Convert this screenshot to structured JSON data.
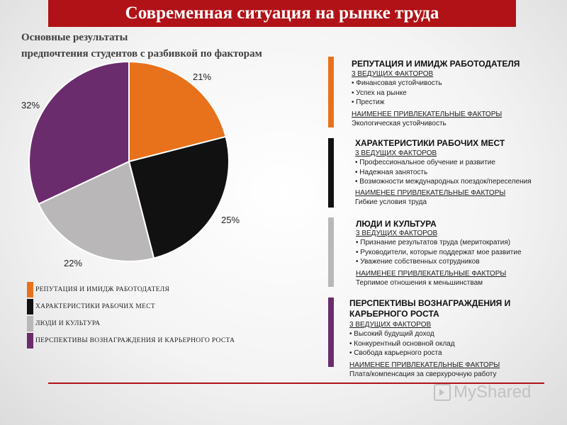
{
  "title": "Современная ситуация на рынке труда",
  "subtitle_line1": "Основные результаты",
  "subtitle_line2": "предпочтения студентов с разбивкой по факторам",
  "colors": {
    "accent": "#b01217",
    "orange": "#e8721c",
    "black": "#111111",
    "gray": "#b9b7b7",
    "purple": "#6b2c6d"
  },
  "chart_data": {
    "type": "pie",
    "categories": [
      "РЕПУТАЦИЯ  И ИМИДЖ РАБОТОДАТЕЛЯ",
      "ХАРАКТЕРИСТИКИ  РАБОЧИХ  МЕСТ",
      "ЛЮДИ И КУЛЬТУРА",
      "ПЕРСПЕКТИВЫ ВОЗНАГРАЖДЕНИЯ И КАРЬЕРНОГО РОСТА"
    ],
    "values": [
      21,
      25,
      22,
      32
    ],
    "labels": [
      "21%",
      "25%",
      "22%",
      "32%"
    ],
    "colors": [
      "#e8721c",
      "#111111",
      "#b9b7b7",
      "#6b2c6d"
    ],
    "legend": "bottom-left"
  },
  "panels": [
    {
      "title": "РЕПУТАЦИЯ И ИМИДЖ РАБОТОДАТЕЛЯ",
      "top_label": "3 ВЕДУЩИХ ФАКТОРОВ",
      "items": [
        "Финансовая устойчивость",
        "Успех на рынке",
        "Престиж"
      ],
      "least_label": "НАИМЕНЕЕ ПРИВЛЕКАТЕЛЬНЫЕ ФАКТОРЫ",
      "least": "Экологическая устойчивость"
    },
    {
      "title": "ХАРАКТЕРИСТИКИ РАБОЧИХ МЕСТ",
      "top_label": "3 ВЕДУЩИХ ФАКТОРОВ",
      "items": [
        "Профессиональное обучение и развитие",
        "Надежная занятость",
        "Возможности международных поездок/переселения"
      ],
      "least_label": "НАИМЕНЕЕ ПРИВЛЕКАТЕЛЬНЫЕ ФАКТОРЫ",
      "least": "Гибкие условия труда"
    },
    {
      "title": "ЛЮДИ И КУЛЬТУРА",
      "top_label": "3 ВЕДУЩИХ ФАКТОРОВ",
      "items": [
        "Признание  результатов труда (меритократия)",
        "Руководители, которые поддержат мое развитие",
        "Уважение собственных сотрудников"
      ],
      "least_label": "НАИМЕНЕЕ ПРИВЛЕКАТЕЛЬНЫЕ ФАКТОРЫ",
      "least": "Терпимое отношения к меньшинствам"
    },
    {
      "title_line1": "ПЕРСПЕКТИВЫ ВОЗНАГРАЖДЕНИЯ И",
      "title_line2": "КАРЬЕРНОГО РОСТА",
      "top_label": "3 ВЕДУЩИХ ФАКТОРОВ",
      "items": [
        "Высокий будущий доход",
        "Конкурентный основной оклад",
        "Свобода карьерного роста"
      ],
      "least_label": "НАИМЕНЕЕ ПРИВЛЕКАТЕЛЬНЫЕ ФАКТОРЫ",
      "least": "Плата/компенсация  за сверхурочную работу"
    }
  ],
  "watermark": "MyShared"
}
